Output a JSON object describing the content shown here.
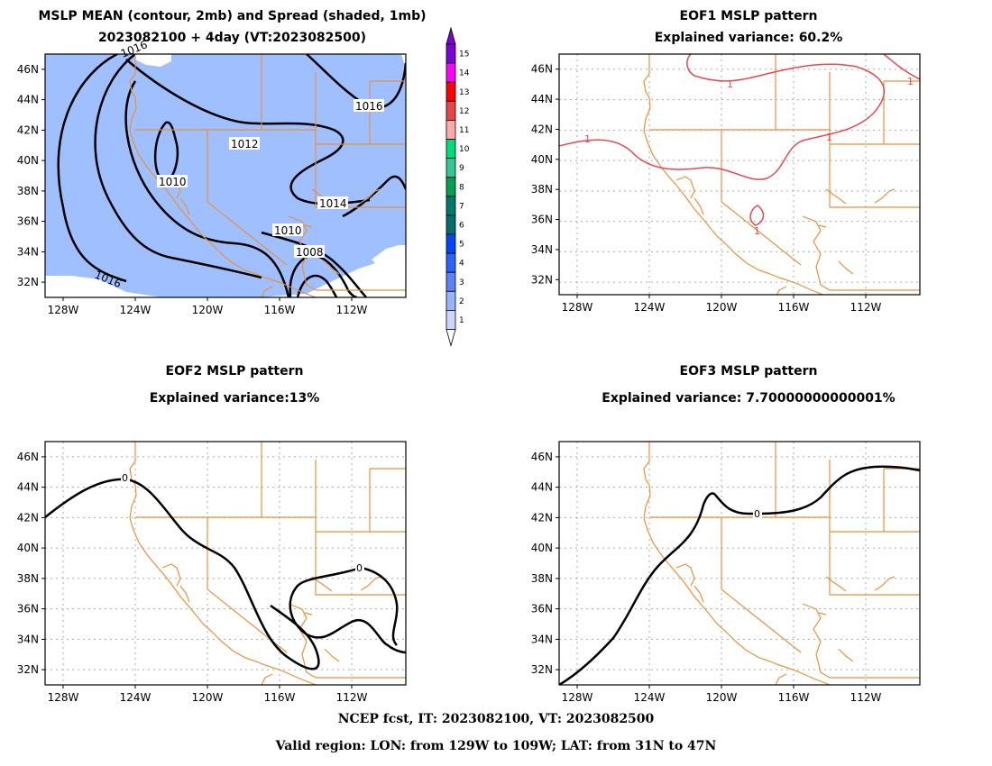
{
  "panels": {
    "mean": {
      "title1": "MSLP MEAN (contour, 2mb) and Spread (shaded, 1mb)",
      "title2": "2023082100 + 4day (VT:2023082500)",
      "contour_labels": [
        "1016",
        "1012",
        "1010",
        "1014",
        "1010",
        "1008",
        "1016",
        "1016"
      ]
    },
    "eof1": {
      "title1": "EOF1 MSLP pattern",
      "title2": "Explained variance: 60.2%",
      "contour_labels": [
        "1",
        "1",
        "1",
        "1",
        "1"
      ]
    },
    "eof2": {
      "title1": "EOF2 MSLP pattern",
      "title2": "Explained variance:13%",
      "contour_labels": [
        "0",
        "0"
      ]
    },
    "eof3": {
      "title1": "EOF3 MSLP pattern",
      "title2": "Explained variance: 7.70000000000001%",
      "contour_labels": [
        "0"
      ]
    }
  },
  "axes": {
    "lat_ticks": [
      "46N",
      "44N",
      "42N",
      "40N",
      "38N",
      "36N",
      "34N",
      "32N"
    ],
    "lon_ticks": [
      "128W",
      "124W",
      "120W",
      "116W",
      "112W"
    ]
  },
  "colorbar": {
    "labels": [
      "15",
      "14",
      "13",
      "12",
      "11",
      "10",
      "9",
      "8",
      "7",
      "6",
      "5",
      "4",
      "3",
      "2",
      "1"
    ],
    "colors": [
      "#7b00dc",
      "#ff00ff",
      "#ff0000",
      "#e64646",
      "#ffaaaa",
      "#00dc78",
      "#32c896",
      "#00a050",
      "#00786e",
      "#006e6e",
      "#0046ff",
      "#2864ff",
      "#5a82ff",
      "#96b4ff",
      "#cad6ff"
    ]
  },
  "colors": {
    "spread_fill": "#a0bfff",
    "state_borders": "#e8913a",
    "mean_contour": "#000000",
    "eof1_contour": "#e8474f",
    "grid": "#aaaaaa"
  },
  "footer": {
    "line1": "NCEP fcst, IT: 2023082100, VT: 2023082500",
    "line2": "Valid region: LON: from 129W to 109W; LAT: from 31N to 47N"
  }
}
